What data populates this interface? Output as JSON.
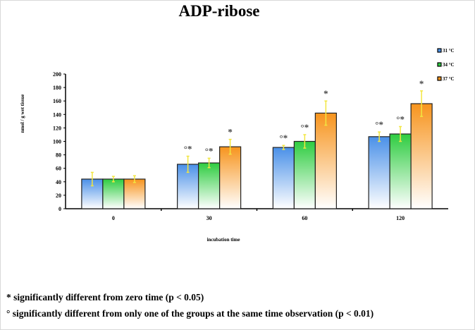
{
  "chart_data": {
    "type": "bar",
    "title": "ADP-ribose",
    "xlabel": "incubation time",
    "ylabel": "nmol / g wet tissue",
    "ylim": [
      0,
      200
    ],
    "yticks": [
      0,
      20,
      40,
      60,
      80,
      100,
      120,
      140,
      160,
      180,
      200
    ],
    "categories": [
      "0",
      "30",
      "60",
      "120"
    ],
    "legend_position": "top-right",
    "grid": false,
    "series": [
      {
        "name": "31 °C",
        "color": "#4a90e8",
        "values": [
          44,
          66,
          91,
          107
        ],
        "errors": [
          10,
          12,
          3,
          7
        ],
        "markers": [
          "",
          "°*",
          "°*",
          "°*"
        ]
      },
      {
        "name": "34 °C",
        "color": "#2ecc40",
        "values": [
          44,
          68,
          100,
          111
        ],
        "errors": [
          4,
          7,
          10,
          11
        ],
        "markers": [
          "",
          "°*",
          "°*",
          "°*"
        ]
      },
      {
        "name": "37 °C",
        "color": "#f7941d",
        "values": [
          44,
          92,
          142,
          156
        ],
        "errors": [
          5,
          11,
          18,
          19
        ],
        "markers": [
          "",
          "*",
          "*",
          "*"
        ]
      }
    ]
  },
  "footnotes": [
    "*  significantly different from zero time (p < 0.05)",
    "° significantly different from only one of the groups at the same time observation (p < 0.01)"
  ]
}
